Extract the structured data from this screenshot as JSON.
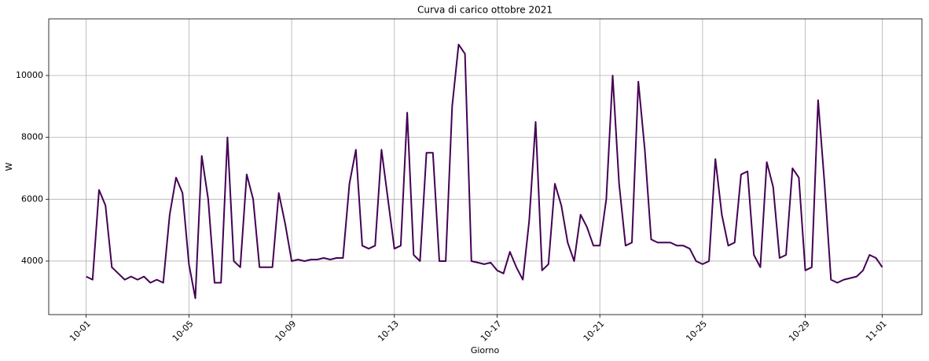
{
  "chart_data": {
    "type": "line",
    "title": "Curva di carico ottobre 2021",
    "x_label": "Giorno",
    "y_label": "W",
    "x": [
      "2021-10-01T00:00",
      "2021-10-01T06:00",
      "2021-10-01T12:00",
      "2021-10-01T18:00",
      "2021-10-02T00:00",
      "2021-10-02T06:00",
      "2021-10-02T12:00",
      "2021-10-02T18:00",
      "2021-10-03T00:00",
      "2021-10-03T06:00",
      "2021-10-03T12:00",
      "2021-10-03T18:00",
      "2021-10-04T00:00",
      "2021-10-04T06:00",
      "2021-10-04T12:00",
      "2021-10-04T18:00",
      "2021-10-05T00:00",
      "2021-10-05T06:00",
      "2021-10-05T12:00",
      "2021-10-05T18:00",
      "2021-10-06T00:00",
      "2021-10-06T06:00",
      "2021-10-06T12:00",
      "2021-10-06T18:00",
      "2021-10-07T00:00",
      "2021-10-07T06:00",
      "2021-10-07T12:00",
      "2021-10-07T18:00",
      "2021-10-08T00:00",
      "2021-10-08T06:00",
      "2021-10-08T12:00",
      "2021-10-08T18:00",
      "2021-10-09T00:00",
      "2021-10-09T06:00",
      "2021-10-09T12:00",
      "2021-10-09T18:00",
      "2021-10-10T00:00",
      "2021-10-10T06:00",
      "2021-10-10T12:00",
      "2021-10-10T18:00",
      "2021-10-11T00:00",
      "2021-10-11T06:00",
      "2021-10-11T12:00",
      "2021-10-11T18:00",
      "2021-10-12T00:00",
      "2021-10-12T06:00",
      "2021-10-12T12:00",
      "2021-10-12T18:00",
      "2021-10-13T00:00",
      "2021-10-13T06:00",
      "2021-10-13T12:00",
      "2021-10-13T18:00",
      "2021-10-14T00:00",
      "2021-10-14T06:00",
      "2021-10-14T12:00",
      "2021-10-14T18:00",
      "2021-10-15T00:00",
      "2021-10-15T06:00",
      "2021-10-15T12:00",
      "2021-10-15T18:00",
      "2021-10-16T00:00",
      "2021-10-16T06:00",
      "2021-10-16T12:00",
      "2021-10-16T18:00",
      "2021-10-17T00:00",
      "2021-10-17T06:00",
      "2021-10-17T12:00",
      "2021-10-17T18:00",
      "2021-10-18T00:00",
      "2021-10-18T06:00",
      "2021-10-18T12:00",
      "2021-10-18T18:00",
      "2021-10-19T00:00",
      "2021-10-19T06:00",
      "2021-10-19T12:00",
      "2021-10-19T18:00",
      "2021-10-20T00:00",
      "2021-10-20T06:00",
      "2021-10-20T12:00",
      "2021-10-20T18:00",
      "2021-10-21T00:00",
      "2021-10-21T06:00",
      "2021-10-21T12:00",
      "2021-10-21T18:00",
      "2021-10-22T00:00",
      "2021-10-22T06:00",
      "2021-10-22T12:00",
      "2021-10-22T18:00",
      "2021-10-23T00:00",
      "2021-10-23T06:00",
      "2021-10-23T12:00",
      "2021-10-23T18:00",
      "2021-10-24T00:00",
      "2021-10-24T06:00",
      "2021-10-24T12:00",
      "2021-10-24T18:00",
      "2021-10-25T00:00",
      "2021-10-25T06:00",
      "2021-10-25T12:00",
      "2021-10-25T18:00",
      "2021-10-26T00:00",
      "2021-10-26T06:00",
      "2021-10-26T12:00",
      "2021-10-26T18:00",
      "2021-10-27T00:00",
      "2021-10-27T06:00",
      "2021-10-27T12:00",
      "2021-10-27T18:00",
      "2021-10-28T00:00",
      "2021-10-28T06:00",
      "2021-10-28T12:00",
      "2021-10-28T18:00",
      "2021-10-29T00:00",
      "2021-10-29T06:00",
      "2021-10-29T12:00",
      "2021-10-29T18:00",
      "2021-10-30T00:00",
      "2021-10-30T06:00",
      "2021-10-30T12:00",
      "2021-10-30T18:00",
      "2021-10-31T00:00",
      "2021-10-31T06:00",
      "2021-10-31T12:00",
      "2021-10-31T18:00",
      "2021-11-01T00:00"
    ],
    "series": [
      {
        "color": "#440154",
        "values": [
          3500,
          3400,
          6300,
          5800,
          3800,
          3600,
          3400,
          3500,
          3400,
          3500,
          3300,
          3400,
          3300,
          5500,
          6700,
          6200,
          3900,
          2800,
          7400,
          6000,
          3300,
          3300,
          8000,
          4000,
          3800,
          6800,
          6000,
          3800,
          3800,
          3800,
          6200,
          5200,
          4000,
          4050,
          4000,
          4050,
          4050,
          4100,
          4050,
          4100,
          4100,
          6500,
          7600,
          4500,
          4400,
          4500,
          7600,
          6000,
          4400,
          4500,
          8800,
          4200,
          4000,
          7500,
          7500,
          4000,
          4000,
          9000,
          11000,
          10700,
          4000,
          3950,
          3900,
          3950,
          3700,
          3600,
          4300,
          3800,
          3400,
          5300,
          8500,
          3700,
          3900,
          6500,
          5800,
          4600,
          4000,
          5500,
          5100,
          4500,
          4500,
          6000,
          10000,
          6500,
          4500,
          4600,
          9800,
          7600,
          4700,
          4600,
          4600,
          4600,
          4500,
          4500,
          4400,
          4000,
          3900,
          4000,
          7300,
          5500,
          4500,
          4600,
          6800,
          6900,
          4200,
          3800,
          7200,
          6400,
          4100,
          4200,
          7000,
          6700,
          3700,
          3800,
          9200,
          6500,
          3400,
          3300,
          3400,
          3450,
          3500,
          3700,
          4200,
          4100,
          3800
        ]
      }
    ],
    "xlim": [
      "2021-09-29T13:00",
      "2021-11-02T13:00"
    ],
    "xticks": [
      {
        "value": "2021-10-01T00:00",
        "label": "10-01"
      },
      {
        "value": "2021-10-05T00:00",
        "label": "10-05"
      },
      {
        "value": "2021-10-09T00:00",
        "label": "10-09"
      },
      {
        "value": "2021-10-13T00:00",
        "label": "10-13"
      },
      {
        "value": "2021-10-17T00:00",
        "label": "10-17"
      },
      {
        "value": "2021-10-21T00:00",
        "label": "10-21"
      },
      {
        "value": "2021-10-25T00:00",
        "label": "10-25"
      },
      {
        "value": "2021-10-29T00:00",
        "label": "10-29"
      },
      {
        "value": "2021-11-01T00:00",
        "label": "11-01"
      }
    ],
    "ylim": [
      2270,
      11830
    ],
    "yticks": [
      4000,
      6000,
      8000,
      10000
    ],
    "grid": true
  }
}
